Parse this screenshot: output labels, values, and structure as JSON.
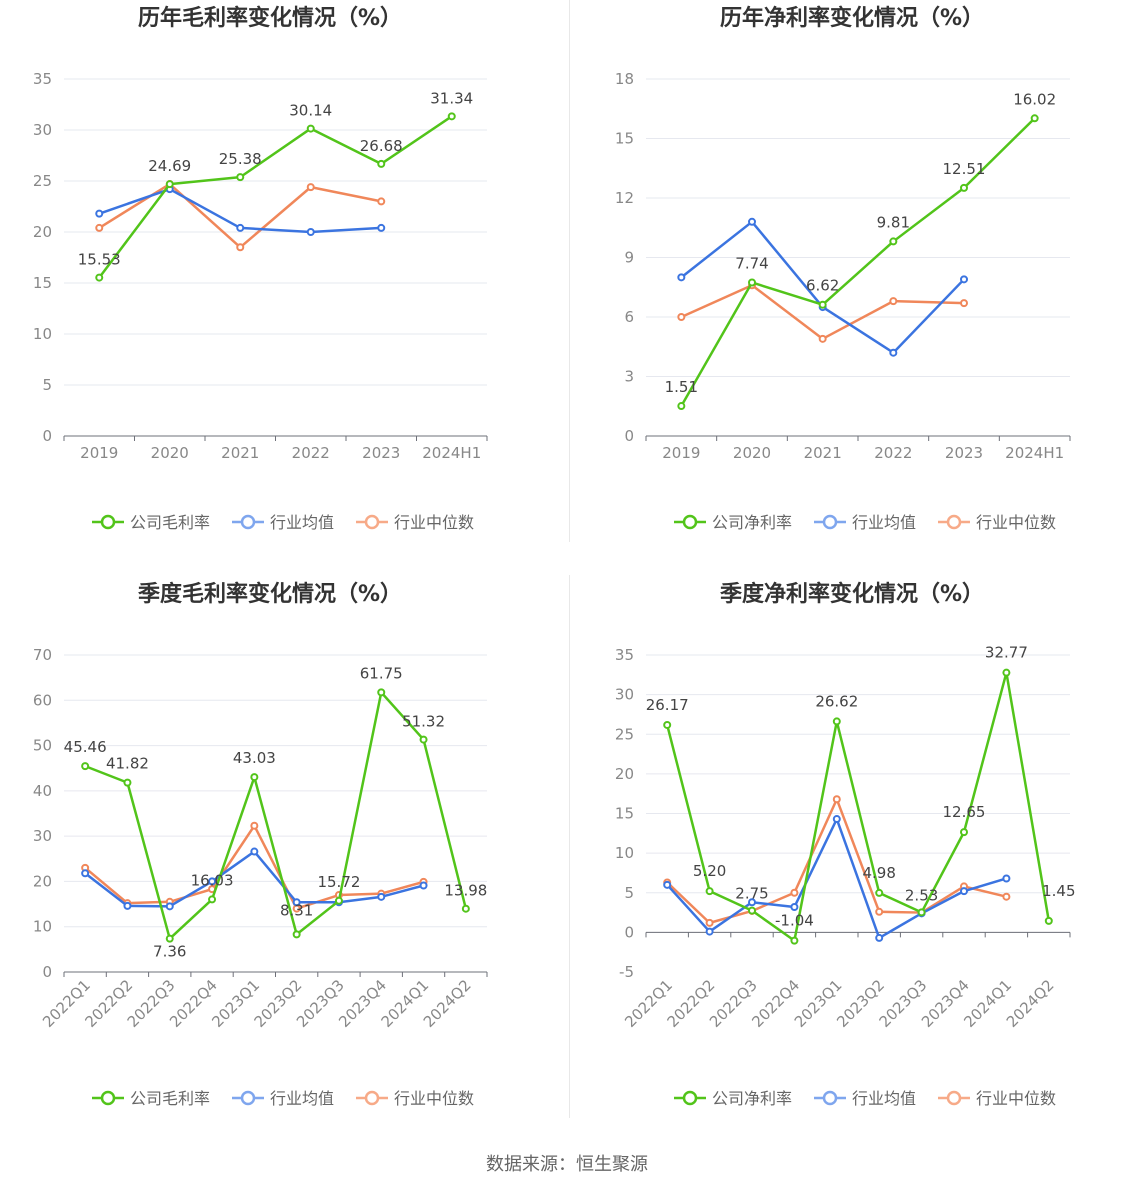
{
  "source": "数据来源：恒生聚源",
  "colors": {
    "company": "#52c41a",
    "avg": "#3b74e0",
    "median": "#f0875a"
  },
  "chart_data": [
    {
      "type": "line",
      "title": "历年毛利率变化情况（%）",
      "categories": [
        "2019",
        "2020",
        "2021",
        "2022",
        "2023",
        "2024H1"
      ],
      "ylim": [
        0,
        35
      ],
      "yticks": [
        0,
        5,
        10,
        15,
        20,
        25,
        30,
        35
      ],
      "legend": [
        "公司毛利率",
        "行业均值",
        "行业中位数"
      ],
      "legend_position": "bottom",
      "grid": true,
      "series": [
        {
          "name": "公司毛利率",
          "values": [
            15.53,
            24.69,
            25.38,
            30.14,
            26.68,
            31.34
          ],
          "labels": [
            "15.53",
            "24.69",
            "25.38",
            "30.14",
            "26.68",
            "31.34"
          ]
        },
        {
          "name": "行业均值",
          "values": [
            21.8,
            24.2,
            20.4,
            20.0,
            20.4,
            null
          ]
        },
        {
          "name": "行业中位数",
          "values": [
            20.4,
            24.7,
            18.5,
            24.4,
            23.0,
            null
          ]
        }
      ]
    },
    {
      "type": "line",
      "title": "历年净利率变化情况（%）",
      "categories": [
        "2019",
        "2020",
        "2021",
        "2022",
        "2023",
        "2024H1"
      ],
      "ylim": [
        0,
        18
      ],
      "yticks": [
        0,
        3,
        6,
        9,
        12,
        15,
        18
      ],
      "legend": [
        "公司净利率",
        "行业均值",
        "行业中位数"
      ],
      "legend_position": "bottom",
      "grid": true,
      "series": [
        {
          "name": "公司净利率",
          "values": [
            1.51,
            7.74,
            6.62,
            9.81,
            12.51,
            16.02
          ],
          "labels": [
            "1.51",
            "7.74",
            "6.62",
            "9.81",
            "12.51",
            "16.02"
          ]
        },
        {
          "name": "行业均值",
          "values": [
            8.0,
            10.8,
            6.5,
            4.2,
            7.9,
            null
          ]
        },
        {
          "name": "行业中位数",
          "values": [
            6.0,
            7.6,
            4.9,
            6.8,
            6.7,
            null
          ]
        }
      ]
    },
    {
      "type": "line",
      "title": "季度毛利率变化情况（%）",
      "categories": [
        "2022Q1",
        "2022Q2",
        "2022Q3",
        "2022Q4",
        "2023Q1",
        "2023Q2",
        "2023Q3",
        "2023Q4",
        "2024Q1",
        "2024Q2"
      ],
      "ylim": [
        0,
        70
      ],
      "yticks": [
        0,
        10,
        20,
        30,
        40,
        50,
        60,
        70
      ],
      "legend": [
        "公司毛利率",
        "行业均值",
        "行业中位数"
      ],
      "legend_position": "bottom",
      "grid": true,
      "series": [
        {
          "name": "公司毛利率",
          "values": [
            45.46,
            41.82,
            7.36,
            16.03,
            43.03,
            8.31,
            15.72,
            61.75,
            51.32,
            13.98
          ],
          "labels": [
            "45.46",
            "41.82",
            "7.36",
            "16.03",
            "43.03",
            "8.31",
            "15.72",
            "61.75",
            "51.32",
            "13.98"
          ]
        },
        {
          "name": "行业均值",
          "values": [
            21.8,
            14.6,
            14.5,
            20.0,
            26.6,
            15.4,
            15.4,
            16.6,
            19.1,
            null
          ]
        },
        {
          "name": "行业中位数",
          "values": [
            23.0,
            15.2,
            15.5,
            18.3,
            32.3,
            14.0,
            17.0,
            17.3,
            19.9,
            null
          ]
        }
      ]
    },
    {
      "type": "line",
      "title": "季度净利率变化情况（%）",
      "categories": [
        "2022Q1",
        "2022Q2",
        "2022Q3",
        "2022Q4",
        "2023Q1",
        "2023Q2",
        "2023Q3",
        "2023Q4",
        "2024Q1",
        "2024Q2"
      ],
      "ylim": [
        -5,
        35
      ],
      "yticks": [
        -5,
        0,
        5,
        10,
        15,
        20,
        25,
        30,
        35
      ],
      "legend": [
        "公司净利率",
        "行业均值",
        "行业中位数"
      ],
      "legend_position": "bottom",
      "grid": true,
      "series": [
        {
          "name": "公司净利率",
          "values": [
            26.17,
            5.2,
            2.75,
            -1.04,
            26.62,
            4.98,
            2.53,
            12.65,
            32.77,
            1.45
          ],
          "labels": [
            "26.17",
            "5.20",
            "2.75",
            "-1.04",
            "26.62",
            "4.98",
            "2.53",
            "12.65",
            "32.77",
            "1.45"
          ]
        },
        {
          "name": "行业均值",
          "values": [
            6.0,
            0.1,
            3.8,
            3.2,
            14.3,
            -0.7,
            2.4,
            5.2,
            6.8,
            null
          ]
        },
        {
          "name": "行业中位数",
          "values": [
            6.3,
            1.2,
            2.7,
            5.0,
            16.8,
            2.6,
            2.5,
            5.8,
            4.5,
            null
          ]
        }
      ]
    }
  ]
}
